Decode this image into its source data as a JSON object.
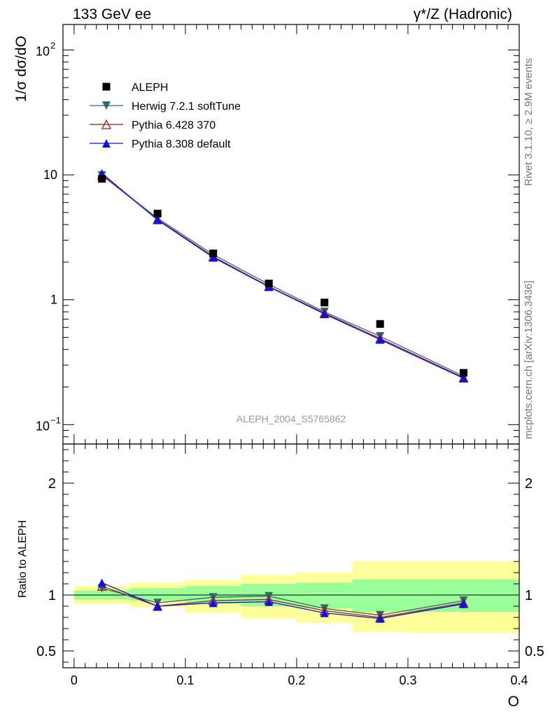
{
  "header": {
    "left": "133 GeV ee",
    "right": "γ*/Z (Hadronic)"
  },
  "side_labels": {
    "rivet": "Rivet 3.1.10, ≥ 2.9M events",
    "mcplots": "mcplots.cern.ch [arXiv:1306.3436]"
  },
  "analysis_id": "ALEPH_2004_S5765862",
  "chart_data": [
    {
      "type": "line",
      "scale": "log",
      "ylabel": "1/σ  dσ/dO",
      "ylim": [
        0.07,
        160
      ],
      "xlim": [
        -0.01,
        0.4
      ],
      "yticks": [
        {
          "v": 0.1,
          "base": "10",
          "exp": "−1"
        },
        {
          "v": 1,
          "label": "1"
        },
        {
          "v": 10,
          "label": "10"
        },
        {
          "v": 100,
          "base": "10",
          "exp": "2"
        }
      ],
      "legend_position": "top-left",
      "x": [
        0.025,
        0.075,
        0.125,
        0.175,
        0.225,
        0.275,
        0.35
      ],
      "data": {
        "name": "ALEPH",
        "values": [
          9.3,
          4.9,
          2.35,
          1.35,
          0.95,
          0.64,
          0.26
        ],
        "color": "#000000",
        "marker": "square"
      },
      "series": [
        {
          "name": "Herwig 7.2.1 softTune",
          "color": "#2f6b6b",
          "marker": "triangle-down",
          "values": [
            9.9,
            4.5,
            2.3,
            1.33,
            0.8,
            0.51,
            0.245
          ]
        },
        {
          "name": "Pythia 6.428 370",
          "color": "#9e1c1c",
          "marker": "triangle-up-open",
          "values": [
            10.0,
            4.4,
            2.22,
            1.28,
            0.78,
            0.49,
            0.238
          ]
        },
        {
          "name": "Pythia 8.308 default",
          "color": "#1010e6",
          "marker": "triangle-up",
          "values": [
            10.3,
            4.35,
            2.18,
            1.27,
            0.77,
            0.48,
            0.235
          ]
        }
      ]
    },
    {
      "type": "line",
      "ylabel": "Ratio to ALEPH",
      "xlabel": "O",
      "ylim": [
        0.35,
        2.35
      ],
      "xlim": [
        -0.01,
        0.4
      ],
      "yticks": [
        0.5,
        1,
        2
      ],
      "ytick_labels": [
        "0.5",
        "1",
        "2"
      ],
      "xticks": [
        0,
        0.1,
        0.2,
        0.3,
        0.4
      ],
      "xtick_labels": [
        "0",
        "0.1",
        "0.2",
        "0.3",
        "0.4"
      ],
      "x": [
        0.025,
        0.075,
        0.125,
        0.175,
        0.225,
        0.275,
        0.35
      ],
      "bands": {
        "bins": [
          [
            0,
            0.05
          ],
          [
            0.05,
            0.1
          ],
          [
            0.1,
            0.15
          ],
          [
            0.15,
            0.2
          ],
          [
            0.2,
            0.25
          ],
          [
            0.25,
            0.3
          ],
          [
            0.3,
            0.4
          ]
        ],
        "yellow": [
          [
            0.92,
            1.08
          ],
          [
            0.89,
            1.11
          ],
          [
            0.84,
            1.13
          ],
          [
            0.79,
            1.18
          ],
          [
            0.75,
            1.2
          ],
          [
            0.67,
            1.3
          ],
          [
            0.66,
            1.3
          ]
        ],
        "green": [
          [
            0.96,
            1.04
          ],
          [
            0.95,
            1.06
          ],
          [
            0.92,
            1.08
          ],
          [
            0.9,
            1.1
          ],
          [
            0.88,
            1.11
          ],
          [
            0.85,
            1.14
          ],
          [
            0.85,
            1.14
          ]
        ],
        "yellow_color": "#ffff99",
        "green_color": "#99ff99"
      },
      "series": [
        {
          "name": "Herwig 7.2.1 softTune",
          "color": "#2f6b6b",
          "marker": "triangle-down",
          "values": [
            1.06,
            0.93,
            0.98,
            0.99,
            0.88,
            0.82,
            0.95
          ]
        },
        {
          "name": "Pythia 6.428 370",
          "color": "#9e1c1c",
          "marker": "triangle-up-open",
          "values": [
            1.08,
            0.9,
            0.95,
            0.96,
            0.86,
            0.8,
            0.93
          ]
        },
        {
          "name": "Pythia 8.308 default",
          "color": "#1010e6",
          "marker": "triangle-up",
          "values": [
            1.11,
            0.9,
            0.93,
            0.94,
            0.84,
            0.79,
            0.92
          ]
        }
      ]
    }
  ]
}
